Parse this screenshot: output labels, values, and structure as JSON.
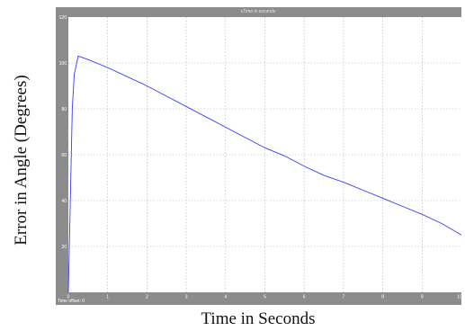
{
  "y_axis_label": "Error in Angle (Degrees)",
  "x_axis_label": "Time in Seconds",
  "scope": {
    "title": "xTime in seconds",
    "status_text": "Time offset: 0",
    "colors": {
      "frame": "#8c8c8c",
      "plot_background": "#ffffff",
      "line": "#3a3aff",
      "grid": "#b0b0b0"
    }
  },
  "chart_data": {
    "type": "line",
    "title": "xTime in seconds",
    "xlabel": "Time in Seconds",
    "ylabel": "Error in Angle (Degrees)",
    "xlim": [
      0,
      10
    ],
    "ylim": [
      0,
      120
    ],
    "x_ticks": [
      0,
      1,
      2,
      3,
      4,
      5,
      6,
      7,
      8,
      9,
      10
    ],
    "y_ticks": [
      20,
      40,
      60,
      80,
      100,
      120
    ],
    "grid": true,
    "series": [
      {
        "x": [
          0.0,
          0.05,
          0.1,
          0.15,
          0.25,
          0.5,
          1.0,
          1.5,
          2.0,
          2.5,
          3.0,
          3.5,
          4.0,
          4.5,
          5.0,
          5.5,
          6.0,
          6.5,
          7.0,
          7.5,
          8.0,
          8.5,
          9.0,
          9.5,
          10.0
        ],
        "y": [
          0.0,
          40.0,
          80.0,
          95.0,
          103.0,
          101.5,
          98.0,
          94.0,
          90.0,
          85.5,
          81.0,
          76.5,
          72.0,
          67.5,
          63.0,
          59.5,
          55.0,
          51.0,
          48.0,
          44.5,
          41.0,
          37.5,
          34.0,
          30.0,
          25.0
        ]
      }
    ]
  }
}
